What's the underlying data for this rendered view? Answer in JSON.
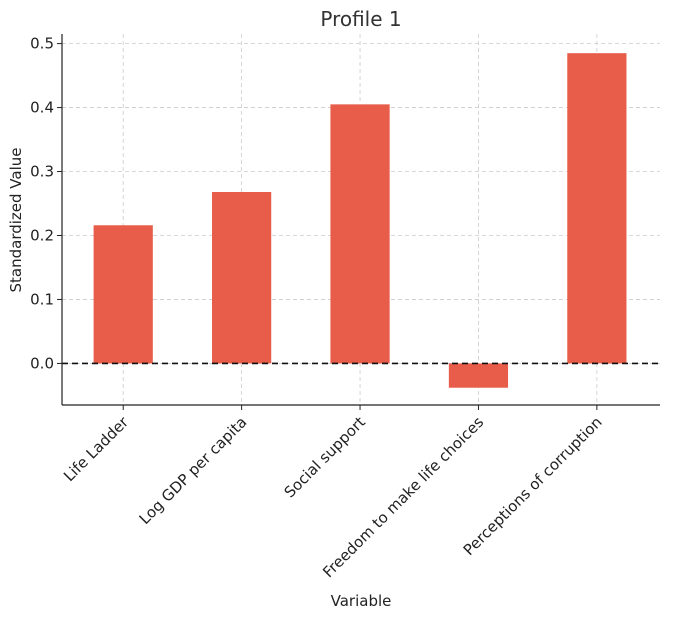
{
  "chart_data": {
    "type": "bar",
    "title": "Profile 1",
    "xlabel": "Variable",
    "ylabel": "Standardized Value",
    "categories": [
      "Life Ladder",
      "Log GDP per capita",
      "Social support",
      "Freedom to make life choices",
      "Perceptions of corruption"
    ],
    "values": [
      0.216,
      0.268,
      0.405,
      -0.038,
      0.485
    ],
    "ylim": [
      -0.065,
      0.515
    ],
    "yticks": [
      0.0,
      0.1,
      0.2,
      0.3,
      0.4,
      0.5
    ],
    "ytick_labels": [
      "0.0",
      "0.1",
      "0.2",
      "0.3",
      "0.4",
      "0.5"
    ],
    "grid": true,
    "reference_line": 0,
    "bar_color": "#e85c4a"
  }
}
